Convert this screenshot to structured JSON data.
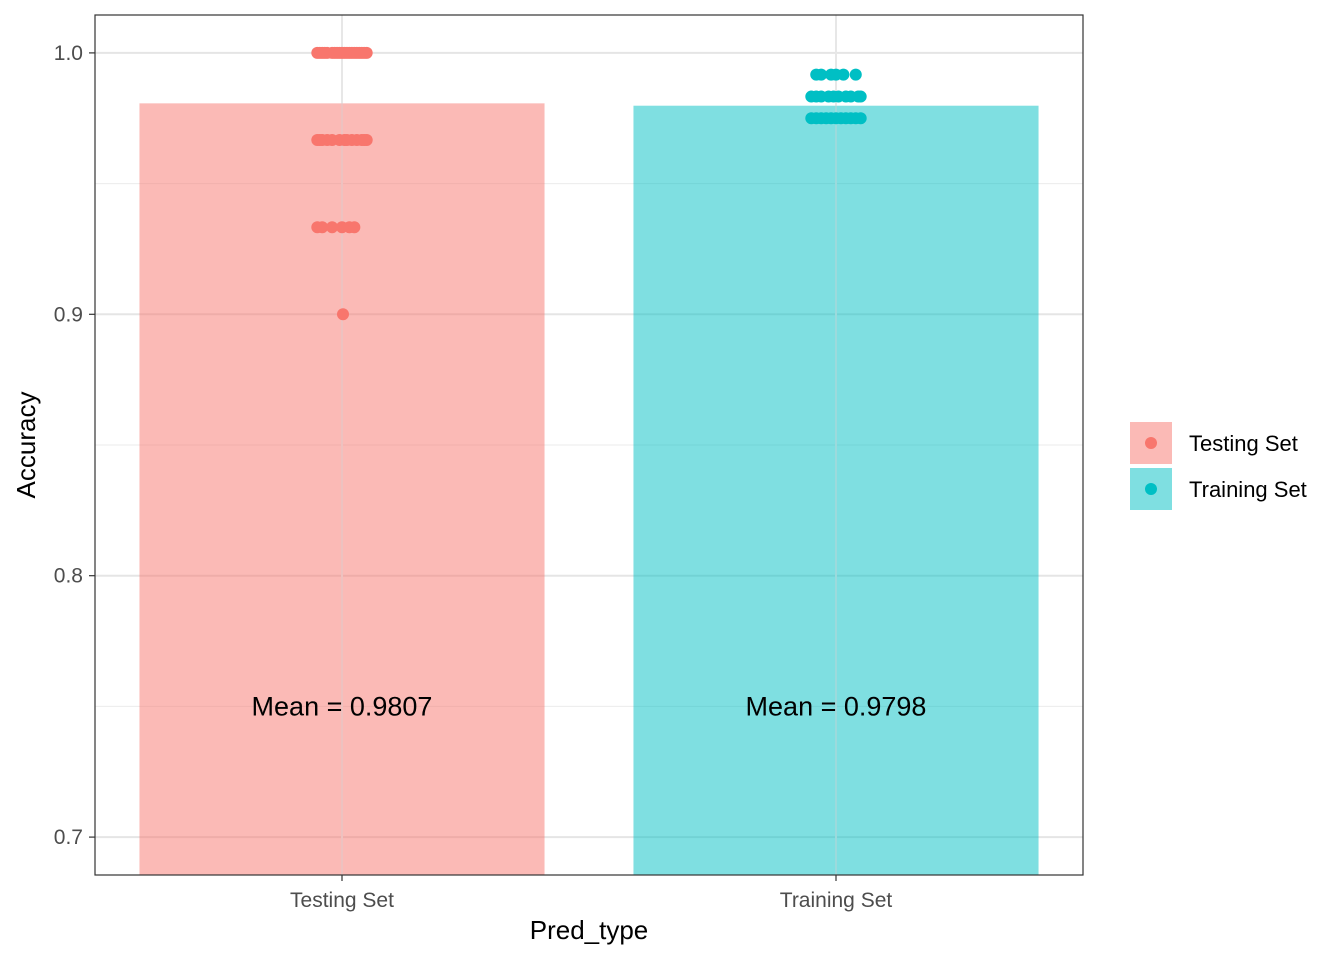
{
  "chart_data": {
    "type": "bar",
    "xlabel": "Pred_type",
    "ylabel": "Accuracy",
    "categories": [
      "Testing Set",
      "Training Set"
    ],
    "means": [
      0.9807,
      0.9798
    ],
    "mean_labels": [
      "Mean = 0.9807",
      "Mean = 0.9798"
    ],
    "ylim": [
      0.6855,
      1.0145
    ],
    "yticks": [
      0.7,
      0.8,
      0.9,
      1.0
    ],
    "ytick_labels": [
      "0.7",
      "0.8",
      "0.9",
      "1.0"
    ],
    "grid": true,
    "legend": {
      "position": "right",
      "entries": [
        "Testing Set",
        "Training Set"
      ]
    },
    "colors": {
      "Testing Set": "#F8766D",
      "Training Set": "#00BFC4"
    },
    "points": [
      {
        "category": "Testing Set",
        "y": 1.0,
        "jitter": [
          -0.05,
          -0.04,
          -0.03,
          -0.02,
          -0.01,
          0.0,
          0.01,
          0.02,
          0.03,
          0.04,
          0.05,
          -0.045,
          -0.035,
          -0.015,
          0.015,
          0.035,
          0.045,
          0.005,
          -0.005,
          0.025
        ]
      },
      {
        "category": "Testing Set",
        "y": 0.9667,
        "jitter": [
          -0.05,
          -0.04,
          -0.03,
          -0.02,
          -0.005,
          0.005,
          0.02,
          0.03,
          0.04,
          0.05,
          -0.045,
          0.01,
          0.045
        ]
      },
      {
        "category": "Testing Set",
        "y": 0.9333,
        "jitter": [
          -0.05,
          -0.04,
          -0.02,
          0.0,
          0.015,
          0.025
        ]
      },
      {
        "category": "Testing Set",
        "y": 0.9,
        "jitter": [
          0.002
        ]
      },
      {
        "category": "Training Set",
        "y": 0.9917,
        "jitter": [
          -0.04,
          -0.03,
          -0.01,
          0.0,
          0.015,
          0.04
        ]
      },
      {
        "category": "Training Set",
        "y": 0.9833,
        "jitter": [
          -0.05,
          -0.04,
          -0.03,
          -0.015,
          -0.005,
          0.005,
          0.02,
          0.03,
          0.045,
          0.05
        ]
      },
      {
        "category": "Training Set",
        "y": 0.975,
        "jitter": [
          -0.05,
          -0.04,
          -0.03,
          -0.02,
          -0.01,
          0.0,
          0.01,
          0.02,
          0.03,
          0.04,
          0.05
        ]
      }
    ]
  }
}
